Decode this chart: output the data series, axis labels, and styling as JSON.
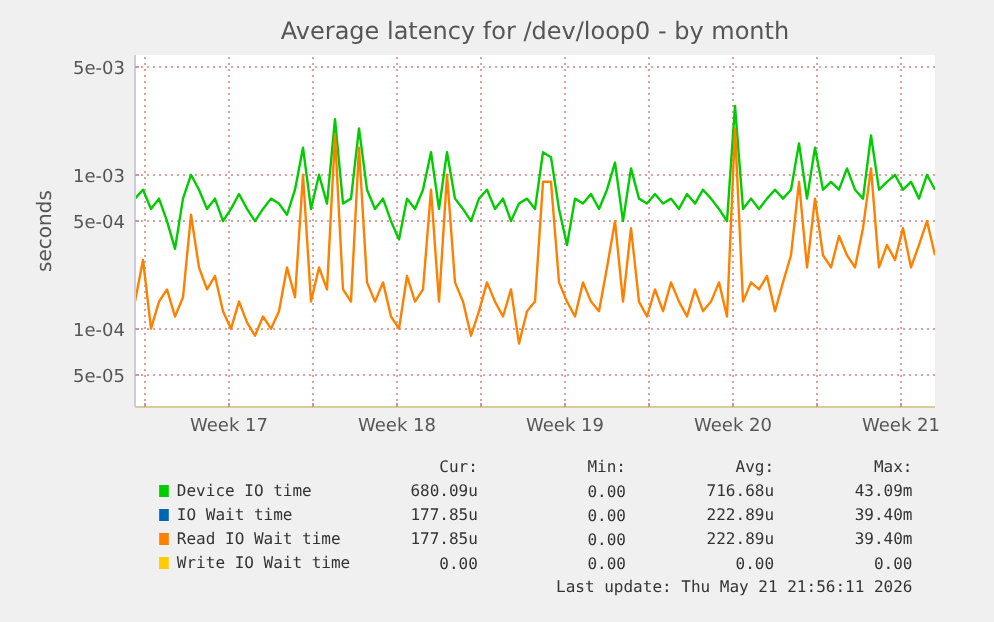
{
  "chart_data": {
    "type": "line",
    "title": "Average latency for /dev/loop0 - by month",
    "ylabel": "seconds",
    "log": "y",
    "grid": true,
    "legend": "bottom",
    "xlim": [
      "2026-04-19T14:00",
      "2026-05-22T22:00"
    ],
    "ylim": [
      3.1e-05,
      0.006
    ],
    "xticks": [
      {
        "value": "2026-04-20",
        "label": null
      },
      {
        "value": "2026-04-23T12:00",
        "label": "Week 17"
      },
      {
        "value": "2026-04-27",
        "label": null
      },
      {
        "value": "2026-04-30T12:00",
        "label": "Week 18"
      },
      {
        "value": "2026-05-04",
        "label": null
      },
      {
        "value": "2026-05-07T12:00",
        "label": "Week 19"
      },
      {
        "value": "2026-05-11",
        "label": null
      },
      {
        "value": "2026-05-14T12:00",
        "label": "Week 20"
      },
      {
        "value": "2026-05-18",
        "label": null
      },
      {
        "value": "2026-05-21T12:00",
        "label": "Week 21"
      }
    ],
    "yticks": [
      {
        "value": 5e-05,
        "label": "5e-05"
      },
      {
        "value": 0.0001,
        "label": "1e-04"
      },
      {
        "value": 0.0005,
        "label": "5e-04"
      },
      {
        "value": 0.001,
        "label": "1e-03"
      },
      {
        "value": 0.005,
        "label": "5e-03"
      }
    ],
    "x": [
      "2026-04-19T14:00",
      "2026-04-19T22:00",
      "2026-04-20T06:00",
      "2026-04-20T14:00",
      "2026-04-20T22:00",
      "2026-04-21T06:00",
      "2026-04-21T14:00",
      "2026-04-21T22:00",
      "2026-04-22T06:00",
      "2026-04-22T14:00",
      "2026-04-22T22:00",
      "2026-04-23T06:00",
      "2026-04-23T14:00",
      "2026-04-23T22:00",
      "2026-04-24T06:00",
      "2026-04-24T14:00",
      "2026-04-24T22:00",
      "2026-04-25T06:00",
      "2026-04-25T14:00",
      "2026-04-25T22:00",
      "2026-04-26T06:00",
      "2026-04-26T14:00",
      "2026-04-26T22:00",
      "2026-04-27T06:00",
      "2026-04-27T14:00",
      "2026-04-27T22:00",
      "2026-04-28T06:00",
      "2026-04-28T14:00",
      "2026-04-28T22:00",
      "2026-04-29T06:00",
      "2026-04-29T14:00",
      "2026-04-29T22:00",
      "2026-04-30T06:00",
      "2026-04-30T14:00",
      "2026-04-30T22:00",
      "2026-05-01T06:00",
      "2026-05-01T14:00",
      "2026-05-01T22:00",
      "2026-05-02T06:00",
      "2026-05-02T14:00",
      "2026-05-02T22:00",
      "2026-05-03T06:00",
      "2026-05-03T14:00",
      "2026-05-03T22:00",
      "2026-05-04T06:00",
      "2026-05-04T14:00",
      "2026-05-04T22:00",
      "2026-05-05T06:00",
      "2026-05-05T14:00",
      "2026-05-05T22:00",
      "2026-05-06T06:00",
      "2026-05-06T14:00",
      "2026-05-06T22:00",
      "2026-05-07T06:00",
      "2026-05-07T14:00",
      "2026-05-07T22:00",
      "2026-05-08T06:00",
      "2026-05-08T14:00",
      "2026-05-08T22:00",
      "2026-05-09T06:00",
      "2026-05-09T14:00",
      "2026-05-09T22:00",
      "2026-05-10T06:00",
      "2026-05-10T14:00",
      "2026-05-10T22:00",
      "2026-05-11T06:00",
      "2026-05-11T14:00",
      "2026-05-11T22:00",
      "2026-05-12T06:00",
      "2026-05-12T14:00",
      "2026-05-12T22:00",
      "2026-05-13T06:00",
      "2026-05-13T14:00",
      "2026-05-13T22:00",
      "2026-05-14T06:00",
      "2026-05-14T14:00",
      "2026-05-14T22:00",
      "2026-05-15T06:00",
      "2026-05-15T14:00",
      "2026-05-15T22:00",
      "2026-05-16T06:00",
      "2026-05-16T14:00",
      "2026-05-16T22:00",
      "2026-05-17T06:00",
      "2026-05-17T14:00",
      "2026-05-17T22:00",
      "2026-05-18T06:00",
      "2026-05-18T14:00",
      "2026-05-18T22:00",
      "2026-05-19T06:00",
      "2026-05-19T14:00",
      "2026-05-19T22:00",
      "2026-05-20T06:00",
      "2026-05-20T14:00",
      "2026-05-20T22:00",
      "2026-05-21T06:00",
      "2026-05-21T14:00",
      "2026-05-21T22:00",
      "2026-05-22T06:00",
      "2026-05-22T14:00",
      "2026-05-22T22:00"
    ],
    "series": [
      {
        "name": "Device IO time",
        "color": "#00cc00",
        "values": [
          0.0007,
          0.0008,
          0.0006,
          0.0007,
          0.0005,
          0.00033,
          0.0007,
          0.001,
          0.0008,
          0.0006,
          0.0007,
          0.0005,
          0.0006,
          0.00075,
          0.0006,
          0.0005,
          0.0006,
          0.0007,
          0.00065,
          0.00055,
          0.0008,
          0.0015,
          0.0006,
          0.001,
          0.00065,
          0.0023,
          0.00065,
          0.0007,
          0.002,
          0.0008,
          0.0006,
          0.0007,
          0.0005,
          0.00038,
          0.0007,
          0.0006,
          0.0008,
          0.0014,
          0.0006,
          0.0014,
          0.0007,
          0.0006,
          0.0005,
          0.0007,
          0.0008,
          0.0006,
          0.0007,
          0.0005,
          0.00065,
          0.0007,
          0.0006,
          0.0014,
          0.0013,
          0.0006,
          0.00035,
          0.0007,
          0.00065,
          0.00075,
          0.0006,
          0.0008,
          0.0012,
          0.0005,
          0.0011,
          0.0007,
          0.00065,
          0.00075,
          0.00065,
          0.0007,
          0.0006,
          0.00075,
          0.00065,
          0.0008,
          0.0007,
          0.0006,
          0.0005,
          0.0028,
          0.0006,
          0.0007,
          0.0006,
          0.0007,
          0.0008,
          0.0007,
          0.0008,
          0.0016,
          0.0007,
          0.0015,
          0.0008,
          0.0009,
          0.0008,
          0.0011,
          0.0008,
          0.0007,
          0.0018,
          0.0008,
          0.0009,
          0.001,
          0.0008,
          0.0009,
          0.0007,
          0.001,
          0.0008
        ]
      },
      {
        "name": "IO Wait time",
        "color": "#0066b3",
        "values": [
          null,
          null,
          null,
          null,
          null,
          null,
          null,
          null,
          null,
          null,
          null,
          null,
          null,
          null,
          null,
          null,
          null,
          null,
          null,
          null,
          null,
          null,
          null,
          null,
          null,
          null,
          null,
          null,
          null,
          null,
          null,
          null,
          null,
          null,
          null,
          null,
          null,
          null,
          null,
          null,
          null,
          null,
          null,
          null,
          null,
          null,
          null,
          null,
          null,
          null,
          null,
          null,
          null,
          null,
          null,
          null,
          null,
          null,
          null,
          null,
          null,
          null,
          null,
          null,
          null,
          null,
          null,
          null,
          null,
          null,
          null,
          null,
          null,
          null,
          null,
          null,
          null,
          null,
          null,
          null,
          null,
          null,
          null,
          null,
          null,
          null,
          null,
          null,
          null,
          null,
          null,
          null,
          null,
          null,
          null,
          null,
          null,
          null,
          null,
          null,
          null
        ]
      },
      {
        "name": "Read IO Wait time",
        "color": "#ff8000",
        "values": [
          0.00015,
          0.00028,
          0.0001,
          0.00015,
          0.00018,
          0.00012,
          0.00016,
          0.00055,
          0.00025,
          0.00018,
          0.00022,
          0.00013,
          0.0001,
          0.00015,
          0.00011,
          9e-05,
          0.00012,
          0.0001,
          0.00013,
          0.00025,
          0.00016,
          0.001,
          0.00015,
          0.00025,
          0.00018,
          0.0018,
          0.00018,
          0.00015,
          0.0015,
          0.0002,
          0.00015,
          0.0002,
          0.00012,
          0.0001,
          0.00022,
          0.00015,
          0.00018,
          0.0008,
          0.00015,
          0.001,
          0.0002,
          0.00015,
          9e-05,
          0.00013,
          0.0002,
          0.00015,
          0.00012,
          0.00018,
          8e-05,
          0.00013,
          0.00015,
          0.0009,
          0.0009,
          0.0002,
          0.00015,
          0.00012,
          0.0002,
          0.00015,
          0.00013,
          0.00025,
          0.0005,
          0.00015,
          0.00045,
          0.00015,
          0.00012,
          0.00018,
          0.00013,
          0.0002,
          0.00015,
          0.00012,
          0.00018,
          0.00013,
          0.00015,
          0.0002,
          0.00012,
          0.002,
          0.00015,
          0.0002,
          0.00018,
          0.00022,
          0.00013,
          0.0002,
          0.0003,
          0.0009,
          0.00025,
          0.0007,
          0.0003,
          0.00025,
          0.0004,
          0.0003,
          0.00025,
          0.00045,
          0.0011,
          0.00025,
          0.00035,
          0.00028,
          0.00045,
          0.00025,
          0.00035,
          0.0005,
          0.0003
        ]
      },
      {
        "name": "Write IO Wait time",
        "color": "#ffcc00",
        "values": [
          null,
          null,
          null,
          null,
          null,
          null,
          null,
          null,
          null,
          null,
          null,
          null,
          null,
          null,
          null,
          null,
          null,
          null,
          null,
          null,
          null,
          null,
          null,
          null,
          null,
          null,
          null,
          null,
          null,
          null,
          null,
          null,
          null,
          null,
          null,
          null,
          null,
          null,
          null,
          null,
          null,
          null,
          null,
          null,
          null,
          null,
          null,
          null,
          null,
          null,
          null,
          null,
          null,
          null,
          null,
          null,
          null,
          null,
          null,
          null,
          null,
          null,
          null,
          null,
          null,
          null,
          null,
          null,
          null,
          null,
          null,
          null,
          null,
          null,
          null,
          null,
          null,
          null,
          null,
          null,
          null,
          null,
          null,
          null,
          null,
          null,
          null,
          null,
          null,
          null,
          null,
          null,
          null,
          null,
          null,
          null,
          null,
          null,
          null,
          null,
          null
        ]
      }
    ],
    "annotations": [
      "Cur:",
      "Min:",
      "Avg:",
      "Max:",
      "680.09u",
      "0.00",
      "716.68u",
      "43.09m",
      "177.85u",
      "0.00",
      "222.89u",
      "39.40m",
      "177.85u",
      "0.00",
      "222.89u",
      "39.40m",
      "0.00",
      "0.00",
      "0.00",
      "0.00",
      "Last update: Thu May 21 21:56:11 2026"
    ]
  }
}
